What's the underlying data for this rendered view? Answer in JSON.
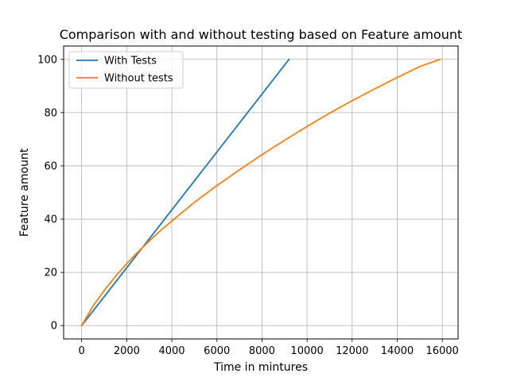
{
  "chart_data": {
    "type": "line",
    "title": "Comparison with and without testing based on Feature amount",
    "xlabel": "Time in mintures",
    "ylabel": "Feature amount",
    "xlim": [
      -800,
      16700
    ],
    "ylim": [
      -5,
      105
    ],
    "xticks": [
      0,
      2000,
      4000,
      6000,
      8000,
      10000,
      12000,
      14000,
      16000
    ],
    "yticks": [
      0,
      20,
      40,
      60,
      80,
      100
    ],
    "grid": true,
    "legend_position": "top-left",
    "series": [
      {
        "name": "With Tests",
        "color": "#1f77b4",
        "x": [
          0,
          9200
        ],
        "y": [
          0,
          100
        ]
      },
      {
        "name": "Without tests",
        "color": "#ff7f0e",
        "x": [
          0,
          500,
          1000,
          1500,
          2000,
          2500,
          3000,
          3500,
          4000,
          5000,
          6000,
          7000,
          8000,
          9000,
          10000,
          11000,
          12000,
          13000,
          14000,
          15000,
          15900
        ],
        "y": [
          0,
          7.3,
          13.2,
          18.5,
          23.3,
          27.7,
          31.8,
          35.7,
          39.3,
          46.3,
          52.6,
          58.5,
          64.2,
          69.6,
          74.8,
          79.8,
          84.5,
          88.9,
          93.2,
          97.3,
          100
        ]
      }
    ]
  }
}
